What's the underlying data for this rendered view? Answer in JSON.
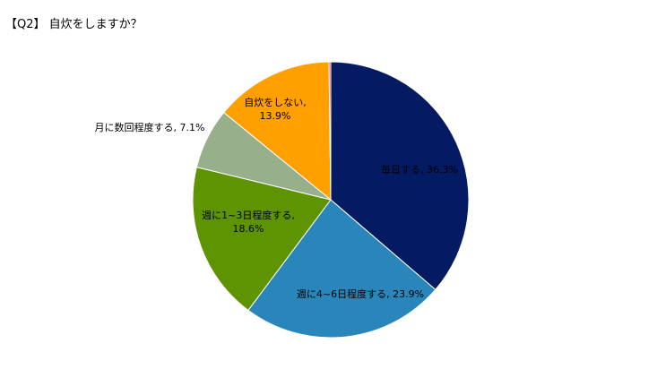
{
  "title": "【Q2】 自炊をしますか？",
  "chart_data": {
    "type": "pie",
    "title": "【Q2】 自炊をしますか？",
    "slices": [
      {
        "label": "毎日する",
        "value": 36.3,
        "color": "#041A62",
        "display": [
          "毎日する, 36.3%"
        ]
      },
      {
        "label": "週に4~6日程度する",
        "value": 23.9,
        "color": "#2A86BA",
        "display": [
          "週に4~6日程度する, 23.9%"
        ]
      },
      {
        "label": "週に1~3日程度する",
        "value": 18.6,
        "color": "#5E9301",
        "display": [
          "週に1~3日程度する,",
          "18.6%"
        ]
      },
      {
        "label": "月に数回程度する",
        "value": 7.1,
        "color": "#98AF8C",
        "display": [
          "月に数回程度する, 7.1%"
        ]
      },
      {
        "label": "自炊をしない",
        "value": 13.9,
        "color": "#FF9F00",
        "display": [
          "自炊をしない,",
          "13.9%"
        ]
      },
      {
        "label": "",
        "value": 0.2,
        "color": "#C8366C",
        "display": []
      }
    ]
  }
}
